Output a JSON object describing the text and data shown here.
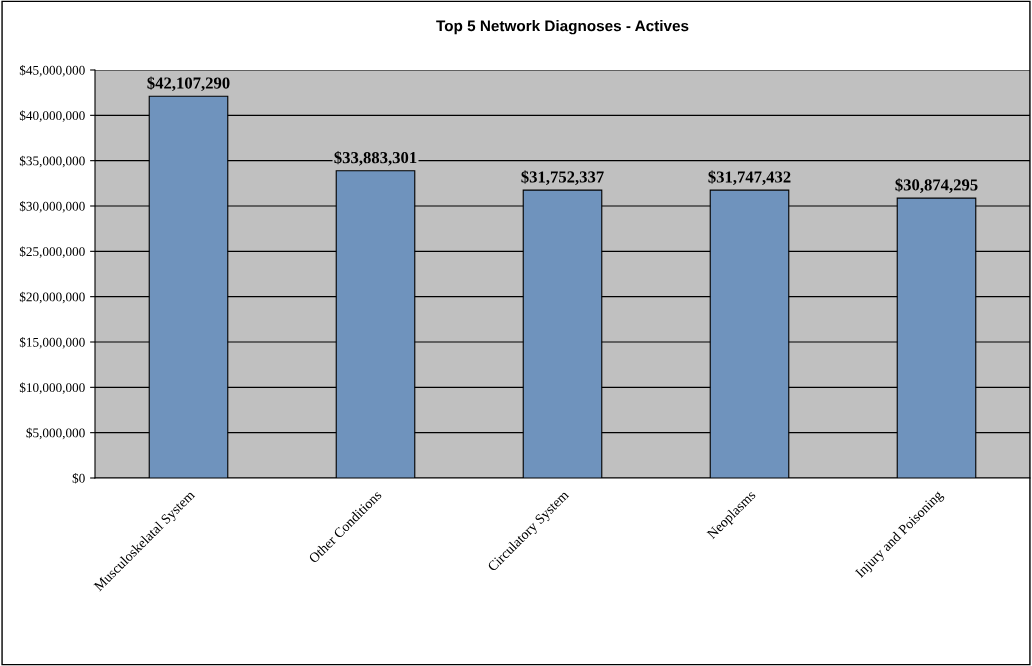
{
  "chart_data": {
    "type": "bar",
    "title": "Top 5 Network Diagnoses - Actives",
    "categories": [
      "Musculoskelatal System",
      "Other Conditions",
      "Circulatory System",
      "Neoplasms",
      "Injury and Poisoning"
    ],
    "values": [
      42107290,
      33883301,
      31752337,
      31747432,
      30874295
    ],
    "value_labels": [
      "$42,107,290",
      "$33,883,301",
      "$31,752,337",
      "$31,747,432",
      "$30,874,295"
    ],
    "color": "#6f93bd",
    "ylim": [
      0,
      45000000
    ],
    "yticks": [
      {
        "value": 0,
        "label": "$0"
      },
      {
        "value": 5000000,
        "label": "$5,000,000"
      },
      {
        "value": 10000000,
        "label": "$10,000,000"
      },
      {
        "value": 15000000,
        "label": "$15,000,000"
      },
      {
        "value": 20000000,
        "label": "$20,000,000"
      },
      {
        "value": 25000000,
        "label": "$25,000,000"
      },
      {
        "value": 30000000,
        "label": "$30,000,000"
      },
      {
        "value": 35000000,
        "label": "$35,000,000"
      },
      {
        "value": 40000000,
        "label": "$40,000,000"
      },
      {
        "value": 45000000,
        "label": "$45,000,000"
      }
    ],
    "grid": "y",
    "legend": false
  }
}
